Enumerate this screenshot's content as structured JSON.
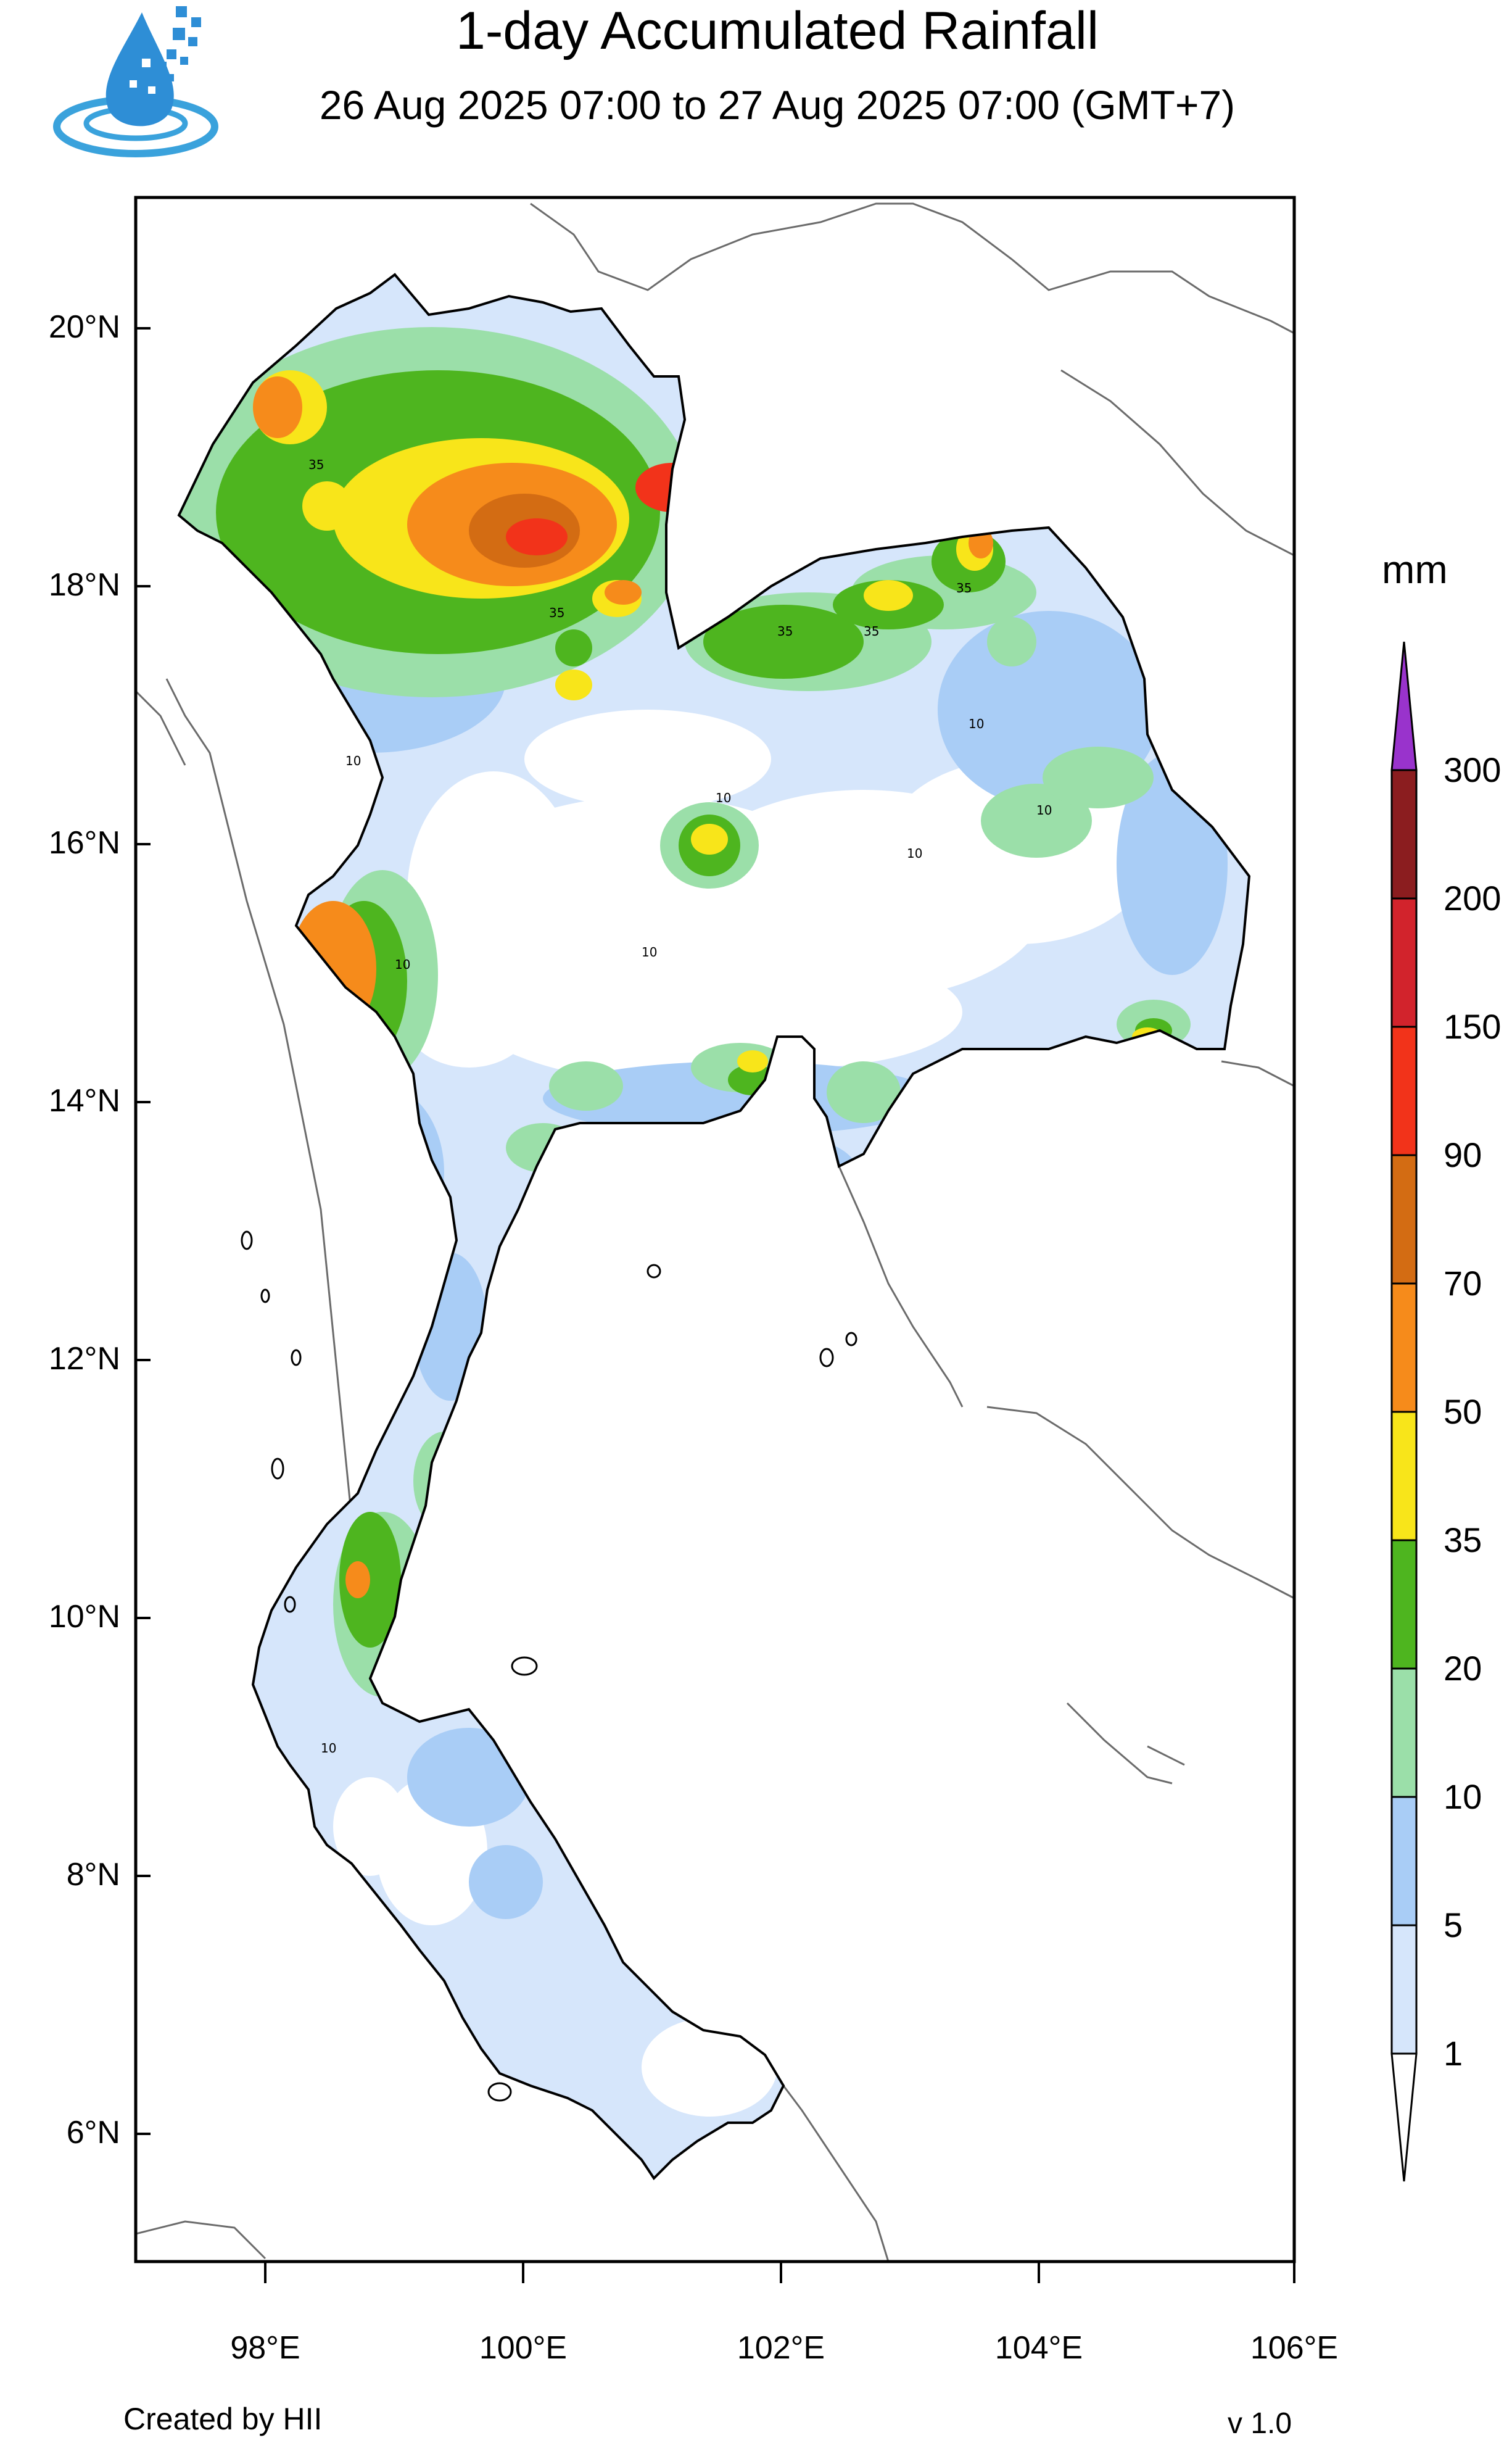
{
  "header": {
    "title": "1-day Accumulated Rainfall",
    "subtitle": "26 Aug 2025 07:00 to 27 Aug 2025 07:00 (GMT+7)"
  },
  "map": {
    "lat_labels": [
      "20°N",
      "18°N",
      "16°N",
      "14°N",
      "12°N",
      "10°N",
      "8°N",
      "6°N"
    ],
    "lon_labels": [
      "98°E",
      "100°E",
      "102°E",
      "104°E",
      "106°E"
    ],
    "lat_range": [
      5.0,
      21.0
    ],
    "lon_range": [
      97.0,
      106.0
    ],
    "contour_labels": [
      "10",
      "35"
    ]
  },
  "legend": {
    "unit": "mm",
    "levels": [
      "1",
      "5",
      "10",
      "20",
      "35",
      "50",
      "70",
      "90",
      "150",
      "200",
      "300"
    ],
    "colors": [
      "#ffffff",
      "#d6e6fb",
      "#a9cdf6",
      "#9bdfa9",
      "#4eb51f",
      "#f8e51a",
      "#f68b1b",
      "#d36c13",
      "#f2331a",
      "#d2232c",
      "#8b1d1f",
      "#9933cc"
    ]
  },
  "footer": {
    "credit": "Created by HII",
    "version": "v 1.0"
  }
}
